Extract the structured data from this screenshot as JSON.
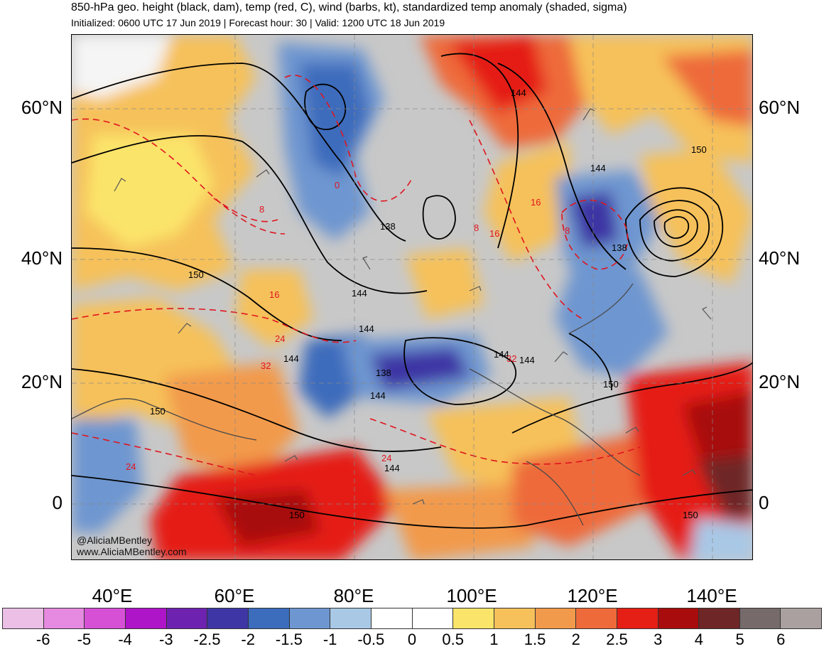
{
  "title": "850-hPa geo. height (black, dam), temp (red, C), wind (barbs, kt), standardized temp anomaly (shaded, sigma)",
  "subtitle": "Initialized: 0600 UTC 17 Jun 2019 | Forecast hour: 30 | Valid: 1200 UTC 18 Jun 2019",
  "lat_labels": [
    "60°N",
    "40°N",
    "20°N",
    "0"
  ],
  "lon_labels": [
    "40°E",
    "60°E",
    "80°E",
    "100°E",
    "120°E",
    "140°E"
  ],
  "credits": [
    "@AliciaMBentley",
    "www.AliciaMBentley.com"
  ],
  "height_contour_labels": [
    "144",
    "150",
    "144",
    "138",
    "150",
    "144",
    "144",
    "144",
    "144",
    "138",
    "144",
    "150",
    "144",
    "150",
    "150",
    "138",
    "144",
    "150"
  ],
  "temp_contour_labels": [
    "8",
    "0",
    "16",
    "8",
    "16",
    "8",
    "16",
    "24",
    "32",
    "24",
    "24",
    "32"
  ],
  "colorbar": {
    "labels": [
      "-6",
      "-5",
      "-4",
      "-3",
      "-2.5",
      "-2",
      "-1.5",
      "-1",
      "-0.5",
      "0",
      "0.5",
      "1",
      "1.5",
      "2",
      "2.5",
      "3",
      "4",
      "5",
      "6"
    ],
    "colors": [
      "#ebbfe6",
      "#e58ae0",
      "#d650d6",
      "#ae14c8",
      "#6e22b0",
      "#3e36a4",
      "#3c6cbc",
      "#6e96d0",
      "#a8c8e6",
      "#ffffff",
      "#ffffff",
      "#fbe46a",
      "#f6c15a",
      "#f29a4c",
      "#ee6a3a",
      "#e51e16",
      "#a80c0c",
      "#6e2626",
      "#766a6a",
      "#aaa0a0"
    ]
  }
}
